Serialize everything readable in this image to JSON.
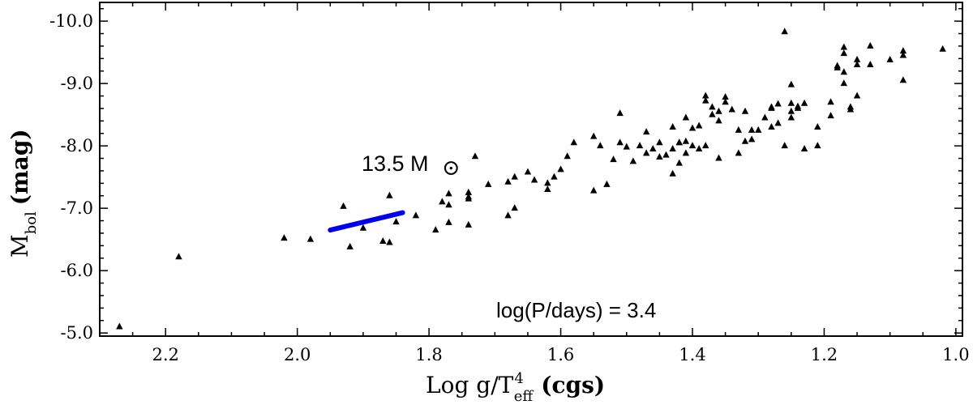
{
  "chart_data": {
    "type": "scatter",
    "xlabel": {
      "prefix": "Log g/T",
      "superscript": "4",
      "subscript": "eff",
      "suffix": "(cgs)"
    },
    "ylabel": {
      "main": "M",
      "subscript": "bol",
      "suffix": "(mag)"
    },
    "xlim": [
      2.3,
      0.99
    ],
    "ylim": [
      -4.95,
      -10.3
    ],
    "x_reversed": true,
    "y_reversed": true,
    "xticks": [
      2.2,
      2.0,
      1.8,
      1.6,
      1.4,
      1.2,
      1.0
    ],
    "xtick_labels": [
      "2.2",
      "2.0",
      "1.8",
      "1.6",
      "1.4",
      "1.2",
      "1.0"
    ],
    "yticks": [
      -10.0,
      -9.0,
      -8.0,
      -7.0,
      -6.0,
      -5.0
    ],
    "ytick_labels": [
      "-10.0",
      "-9.0",
      "-8.0",
      "-7.0",
      "-6.0",
      "-5.0"
    ],
    "grid": false,
    "annotation": "log(P/days) = 3.4",
    "track": {
      "label": "13.5 M",
      "unit_symbol": "⊙",
      "color": "#0000ee",
      "x": [
        1.95,
        1.84
      ],
      "y": [
        -6.65,
        -6.93
      ]
    },
    "points_x": [
      2.27,
      2.18,
      2.02,
      1.98,
      1.93,
      1.92,
      1.9,
      1.87,
      1.86,
      1.86,
      1.85,
      1.82,
      1.79,
      1.78,
      1.77,
      1.77,
      1.77,
      1.74,
      1.74,
      1.74,
      1.74,
      1.73,
      1.71,
      1.68,
      1.68,
      1.67,
      1.67,
      1.65,
      1.64,
      1.62,
      1.62,
      1.61,
      1.6,
      1.59,
      1.58,
      1.55,
      1.55,
      1.54,
      1.53,
      1.52,
      1.51,
      1.51,
      1.5,
      1.49,
      1.48,
      1.47,
      1.47,
      1.46,
      1.45,
      1.45,
      1.44,
      1.43,
      1.43,
      1.43,
      1.42,
      1.42,
      1.42,
      1.41,
      1.41,
      1.41,
      1.4,
      1.4,
      1.39,
      1.39,
      1.38,
      1.38,
      1.38,
      1.37,
      1.37,
      1.36,
      1.36,
      1.36,
      1.35,
      1.35,
      1.34,
      1.33,
      1.33,
      1.32,
      1.32,
      1.31,
      1.31,
      1.3,
      1.29,
      1.28,
      1.28,
      1.28,
      1.27,
      1.27,
      1.26,
      1.26,
      1.25,
      1.25,
      1.25,
      1.25,
      1.24,
      1.24,
      1.23,
      1.23,
      1.21,
      1.21,
      1.19,
      1.19,
      1.18,
      1.18,
      1.17,
      1.17,
      1.17,
      1.17,
      1.16,
      1.16,
      1.15,
      1.15,
      1.15,
      1.13,
      1.13,
      1.1,
      1.08,
      1.08,
      1.08,
      1.02
    ],
    "points_y": [
      -5.1,
      -6.22,
      -6.52,
      -6.5,
      -7.03,
      -6.38,
      -6.68,
      -6.47,
      -6.45,
      -7.2,
      -6.78,
      -6.88,
      -6.65,
      -7.1,
      -6.77,
      -7.23,
      -7.05,
      -7.25,
      -7.18,
      -7.15,
      -6.73,
      -7.83,
      -7.38,
      -6.88,
      -7.42,
      -7.0,
      -7.5,
      -7.58,
      -7.45,
      -7.3,
      -7.4,
      -7.5,
      -7.62,
      -7.83,
      -8.05,
      -7.28,
      -8.15,
      -8.0,
      -7.38,
      -7.78,
      -8.05,
      -8.52,
      -7.98,
      -7.75,
      -8.0,
      -8.22,
      -7.88,
      -7.95,
      -7.82,
      -8.05,
      -7.85,
      -7.95,
      -7.55,
      -8.3,
      -8.05,
      -7.72,
      -8.05,
      -8.07,
      -7.88,
      -8.45,
      -8.0,
      -8.28,
      -7.95,
      -8.32,
      -8.8,
      -8.0,
      -8.72,
      -8.5,
      -8.62,
      -7.8,
      -8.4,
      -8.55,
      -8.7,
      -8.78,
      -8.58,
      -8.25,
      -7.88,
      -8.07,
      -8.55,
      -8.1,
      -8.25,
      -8.25,
      -8.45,
      -8.62,
      -8.3,
      -8.6,
      -8.36,
      -8.67,
      -9.83,
      -8.0,
      -8.45,
      -8.55,
      -8.98,
      -8.68,
      -8.6,
      -8.63,
      -7.95,
      -8.68,
      -8.0,
      -8.3,
      -8.48,
      -8.7,
      -9.28,
      -9.25,
      -9.58,
      -9.48,
      -9.18,
      -9.0,
      -8.62,
      -8.58,
      -9.3,
      -8.8,
      -9.38,
      -9.6,
      -9.3,
      -9.38,
      -9.05,
      -9.45,
      -9.52,
      -9.55
    ]
  }
}
